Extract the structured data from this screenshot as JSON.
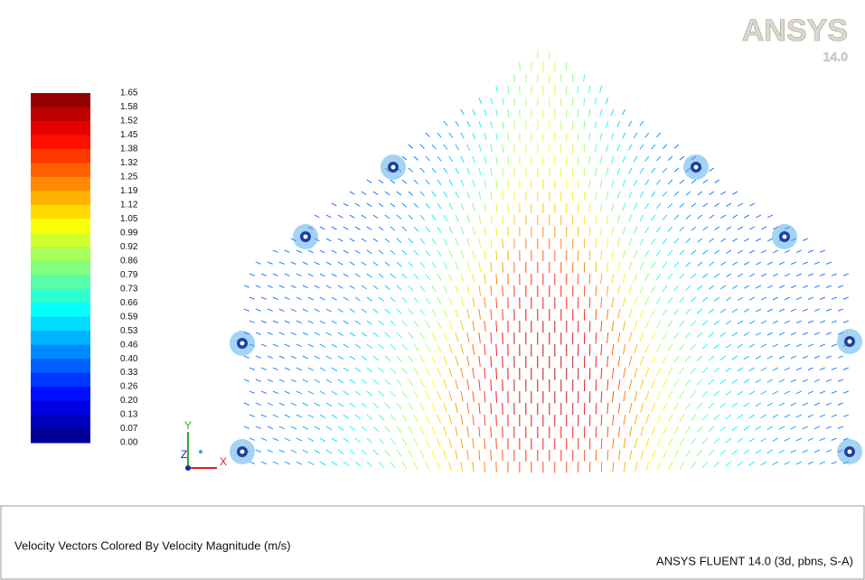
{
  "logo": {
    "name": "ANSYS",
    "version": "14.0"
  },
  "colorbar": {
    "labels": [
      "1.65",
      "1.58",
      "1.52",
      "1.45",
      "1.38",
      "1.32",
      "1.25",
      "1.19",
      "1.12",
      "1.05",
      "0.99",
      "0.92",
      "0.86",
      "0.79",
      "0.73",
      "0.66",
      "0.59",
      "0.53",
      "0.46",
      "0.40",
      "0.33",
      "0.26",
      "0.20",
      "0.13",
      "0.07",
      "0.00"
    ]
  },
  "axes": {
    "y": "Y",
    "z": "Z",
    "x": "X"
  },
  "footer": {
    "title": "Velocity Vectors Colored By Velocity Magnitude (m/s)",
    "solver": "ANSYS FLUENT 14.0 (3d, pbns, S-A)"
  }
}
